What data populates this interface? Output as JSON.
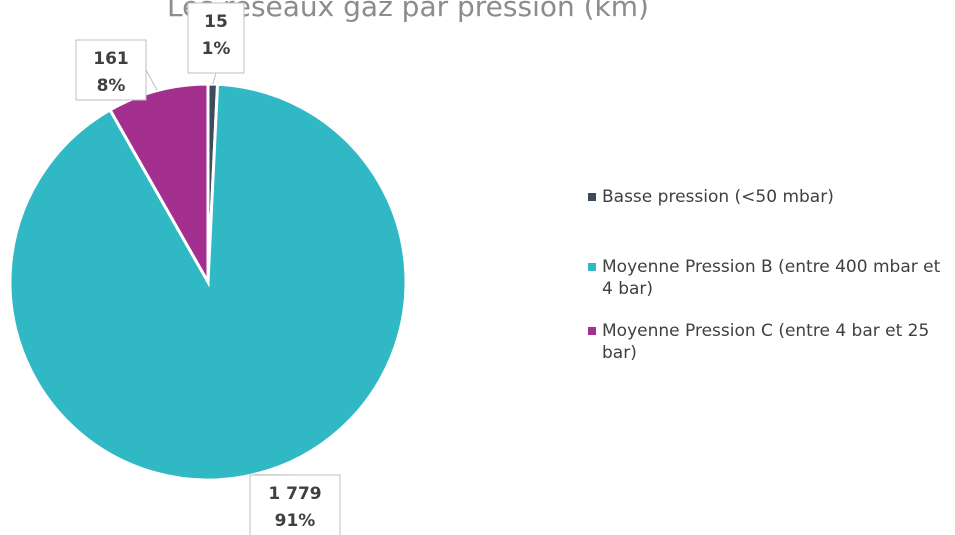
{
  "chart_data": {
    "type": "pie",
    "title": "Les réseaux gaz par pression (km)",
    "categories": [
      "Basse pression (<50 mbar)",
      "Moyenne Pression B (entre 400 mbar et 4 bar)",
      "Moyenne Pression C (entre 4 bar et 25 bar)"
    ],
    "values": [
      15,
      1779,
      161
    ],
    "value_labels": [
      "15",
      "1 779",
      "161"
    ],
    "percent_labels": [
      "1%",
      "91%",
      "8%"
    ],
    "colors": [
      "#3d4b5c",
      "#31b8c5",
      "#a3308f"
    ],
    "legend": "right"
  }
}
